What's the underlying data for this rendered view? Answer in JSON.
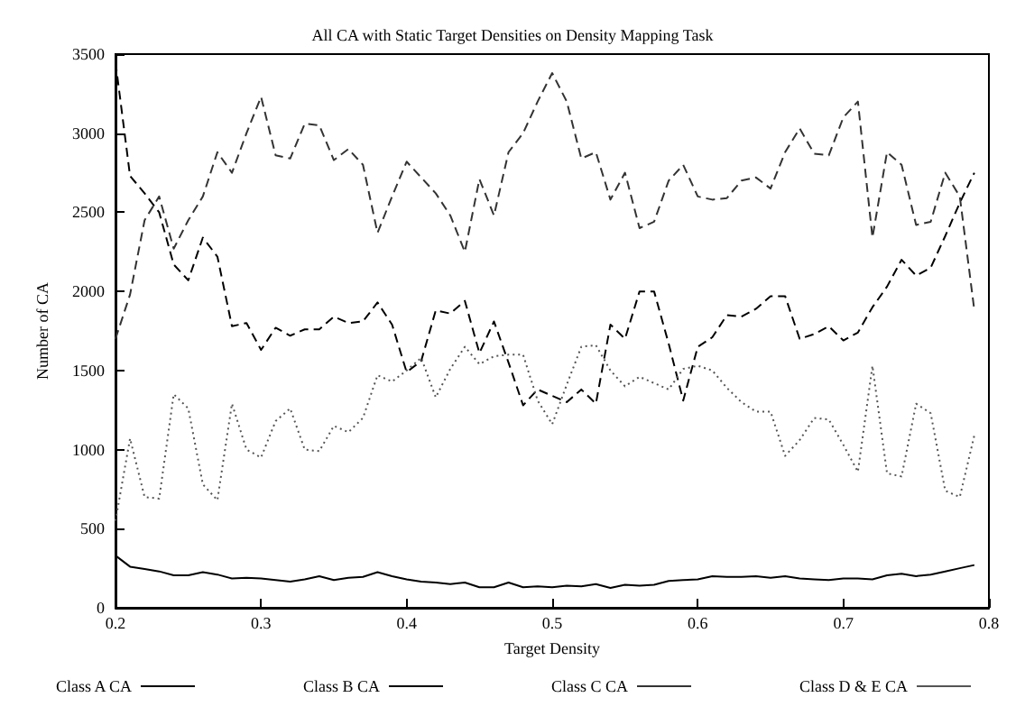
{
  "chart_data": {
    "type": "line",
    "title": "All CA with Static Target Densities on Density Mapping Task",
    "xlabel": "Target Density",
    "ylabel": "Number of CA",
    "x": [
      0.2,
      0.21,
      0.22,
      0.23,
      0.24,
      0.25,
      0.26,
      0.27,
      0.28,
      0.29,
      0.3,
      0.31,
      0.32,
      0.33,
      0.34,
      0.35,
      0.36,
      0.37,
      0.38,
      0.39,
      0.4,
      0.41,
      0.42,
      0.43,
      0.44,
      0.45,
      0.46,
      0.47,
      0.48,
      0.49,
      0.5,
      0.51,
      0.52,
      0.53,
      0.54,
      0.55,
      0.56,
      0.57,
      0.58,
      0.59,
      0.6,
      0.61,
      0.62,
      0.63,
      0.64,
      0.65,
      0.66,
      0.67,
      0.68,
      0.69,
      0.7,
      0.71,
      0.72,
      0.73,
      0.74,
      0.75,
      0.76,
      0.77,
      0.78,
      0.79
    ],
    "series": [
      {
        "name": "Class A CA",
        "color": "#000000",
        "line_style": "solid",
        "values": [
          330,
          260,
          245,
          230,
          205,
          205,
          225,
          210,
          185,
          190,
          185,
          175,
          165,
          180,
          200,
          175,
          190,
          195,
          225,
          200,
          180,
          165,
          160,
          150,
          160,
          130,
          130,
          160,
          130,
          135,
          130,
          140,
          135,
          150,
          125,
          145,
          140,
          145,
          170,
          175,
          180,
          200,
          195,
          195,
          200,
          190,
          200,
          185,
          180,
          175,
          185,
          185,
          180,
          205,
          215,
          200,
          210,
          230,
          250,
          270
        ]
      },
      {
        "name": "Class B CA",
        "color": "#000000",
        "line_style": "dashed",
        "values": [
          3450,
          2730,
          2620,
          2500,
          2170,
          2070,
          2340,
          2220,
          1780,
          1800,
          1630,
          1770,
          1720,
          1760,
          1760,
          1840,
          1800,
          1810,
          1930,
          1790,
          1490,
          1560,
          1880,
          1860,
          1940,
          1610,
          1810,
          1550,
          1280,
          1380,
          1340,
          1300,
          1380,
          1290,
          1790,
          1700,
          2000,
          2000,
          1670,
          1310,
          1650,
          1710,
          1850,
          1840,
          1890,
          1970,
          1970,
          1700,
          1730,
          1780,
          1690,
          1740,
          1900,
          2030,
          2200,
          2100,
          2150,
          2350,
          2560,
          2750
        ]
      },
      {
        "name": "Class C CA",
        "color": "#333333",
        "line_style": "dashed",
        "values": [
          1700,
          1980,
          2450,
          2600,
          2270,
          2450,
          2600,
          2880,
          2750,
          3000,
          3230,
          2860,
          2840,
          3060,
          3050,
          2830,
          2900,
          2800,
          2370,
          2600,
          2820,
          2720,
          2620,
          2480,
          2250,
          2710,
          2480,
          2880,
          3000,
          3200,
          3380,
          3200,
          2840,
          2880,
          2580,
          2750,
          2400,
          2440,
          2700,
          2800,
          2600,
          2580,
          2590,
          2700,
          2720,
          2650,
          2880,
          3030,
          2870,
          2860,
          3100,
          3200,
          2340,
          2880,
          2800,
          2420,
          2440,
          2750,
          2600,
          1880
        ]
      },
      {
        "name": "Class D & E CA",
        "color": "#555555",
        "line_style": "dotted",
        "values": [
          550,
          1070,
          700,
          690,
          1350,
          1260,
          780,
          680,
          1290,
          1000,
          950,
          1180,
          1260,
          1000,
          990,
          1150,
          1110,
          1200,
          1470,
          1430,
          1500,
          1580,
          1330,
          1510,
          1650,
          1540,
          1590,
          1600,
          1600,
          1310,
          1160,
          1410,
          1650,
          1660,
          1500,
          1400,
          1460,
          1420,
          1380,
          1510,
          1530,
          1500,
          1390,
          1300,
          1240,
          1240,
          960,
          1060,
          1200,
          1190,
          1030,
          860,
          1530,
          850,
          830,
          1290,
          1230,
          740,
          700,
          1090
        ]
      }
    ],
    "xlim": [
      0.2,
      0.8
    ],
    "xticks": [
      0.2,
      0.3,
      0.4,
      0.5,
      0.6,
      0.7,
      0.8
    ],
    "ylim": [
      0,
      3500
    ],
    "yticks": [
      0,
      500,
      1000,
      1500,
      2000,
      2500,
      3000,
      3500
    ],
    "grid": false,
    "legend": "bottom",
    "marker": "none"
  }
}
